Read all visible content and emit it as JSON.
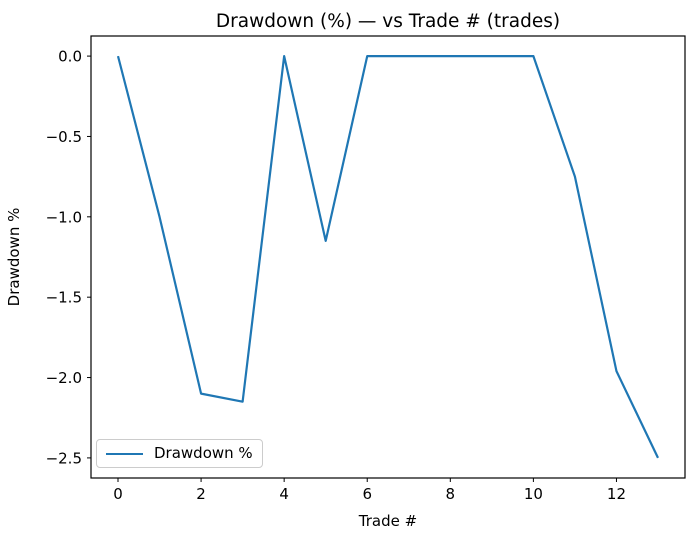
{
  "figure": {
    "background": "#ffffff",
    "axis_color": "#000000"
  },
  "chart_data": {
    "type": "line",
    "title": "Drawdown (%) — vs Trade # (trades)",
    "xlabel": "Trade #",
    "ylabel": "Drawdown %",
    "x": [
      0,
      1,
      2,
      3,
      4,
      5,
      6,
      7,
      8,
      9,
      10,
      11,
      12,
      13
    ],
    "series": [
      {
        "name": "Drawdown %",
        "color": "#1f77b4",
        "values": [
          0.0,
          -1.0,
          -2.1,
          -2.15,
          0.0,
          -1.15,
          0.0,
          0.0,
          0.0,
          0.0,
          0.0,
          -0.75,
          -1.96,
          -2.5
        ]
      }
    ],
    "xlim": [
      -0.65,
      13.65
    ],
    "ylim": [
      -2.625,
      0.125
    ],
    "xticks": [
      {
        "v": 0,
        "label": "0"
      },
      {
        "v": 2,
        "label": "2"
      },
      {
        "v": 4,
        "label": "4"
      },
      {
        "v": 6,
        "label": "6"
      },
      {
        "v": 8,
        "label": "8"
      },
      {
        "v": 10,
        "label": "10"
      },
      {
        "v": 12,
        "label": "12"
      }
    ],
    "yticks": [
      {
        "v": 0.0,
        "label": "0.0"
      },
      {
        "v": -0.5,
        "label": "−0.5"
      },
      {
        "v": -1.0,
        "label": "−1.0"
      },
      {
        "v": -1.5,
        "label": "−1.5"
      },
      {
        "v": -2.0,
        "label": "−2.0"
      },
      {
        "v": -2.5,
        "label": "−2.5"
      }
    ],
    "grid": false,
    "legend": {
      "label": "Drawdown %",
      "position": "lower left"
    }
  }
}
